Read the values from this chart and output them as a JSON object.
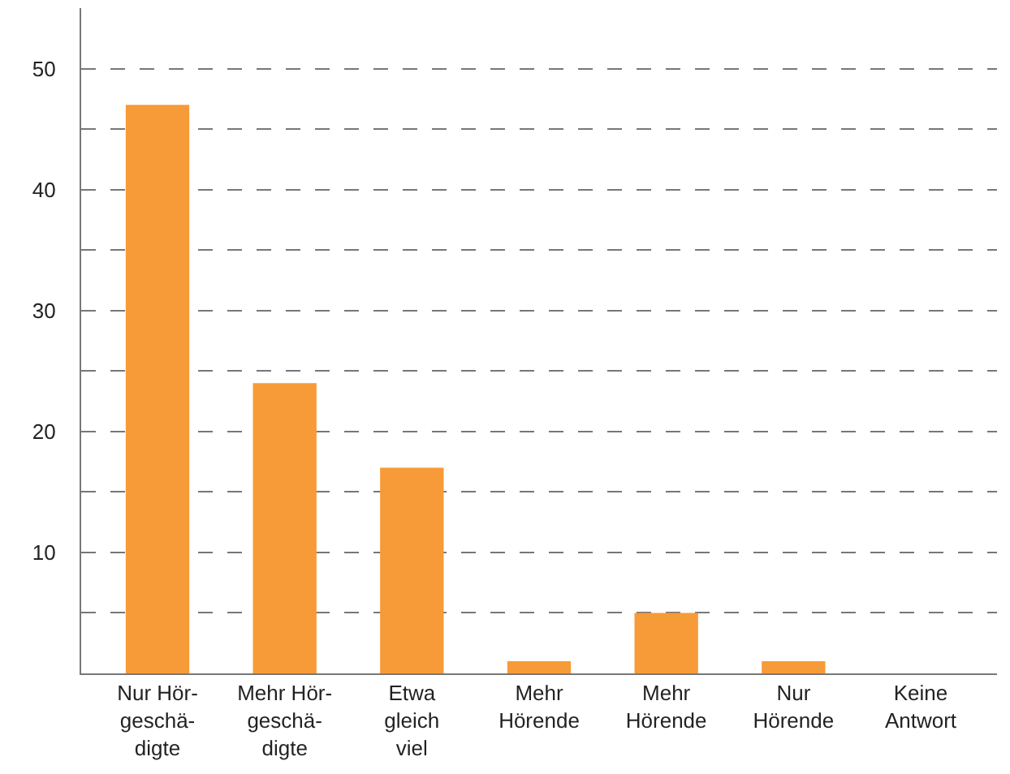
{
  "chart_data": {
    "type": "bar",
    "categories": [
      "Nur Hör-\ngeschä-\ndigte",
      "Mehr Hör-\ngeschä-\ndigte",
      "Etwa\ngleich\nviel",
      "Mehr\nHörende",
      "Mehr\nHörende",
      "Nur\nHörende",
      "Keine\nAntwort"
    ],
    "values": [
      47,
      24,
      17,
      1,
      5,
      1,
      0
    ],
    "color": "#f79a38",
    "ylim": [
      0,
      55
    ],
    "yticks": [
      {
        "value": 5,
        "label": null
      },
      10,
      {
        "value": 15,
        "label": null
      },
      20,
      {
        "value": 25,
        "label": null
      },
      30,
      {
        "value": 35,
        "label": null
      },
      40,
      {
        "value": 45,
        "label": null
      },
      50
    ],
    "grid": "y"
  }
}
